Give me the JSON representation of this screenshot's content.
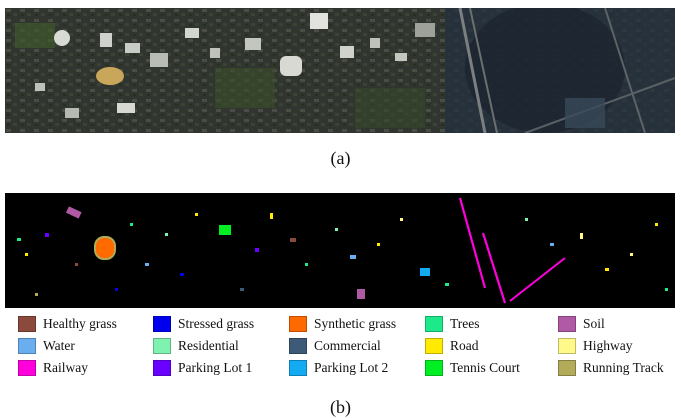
{
  "captions": {
    "a": "(a)",
    "b": "(b)"
  },
  "legend": [
    {
      "label": "Healthy grass",
      "color": "#8b4a3c"
    },
    {
      "label": "Stressed grass",
      "color": "#0000ee"
    },
    {
      "label": "Synthetic grass",
      "color": "#ff6a00"
    },
    {
      "label": "Trees",
      "color": "#1de88a"
    },
    {
      "label": "Soil",
      "color": "#b05aa5"
    },
    {
      "label": "Water",
      "color": "#6aaef0"
    },
    {
      "label": "Residential",
      "color": "#7ff2b0"
    },
    {
      "label": "Commercial",
      "color": "#3d5a78"
    },
    {
      "label": "Road",
      "color": "#ffea00"
    },
    {
      "label": "Highway",
      "color": "#fff98a"
    },
    {
      "label": "Railway",
      "color": "#ff00dd"
    },
    {
      "label": "Parking Lot 1",
      "color": "#6a00ff"
    },
    {
      "label": "Parking Lot 2",
      "color": "#12aaf0"
    },
    {
      "label": "Tennis Court",
      "color": "#00ee22"
    },
    {
      "label": "Running Track",
      "color": "#b1ab5a"
    }
  ]
}
